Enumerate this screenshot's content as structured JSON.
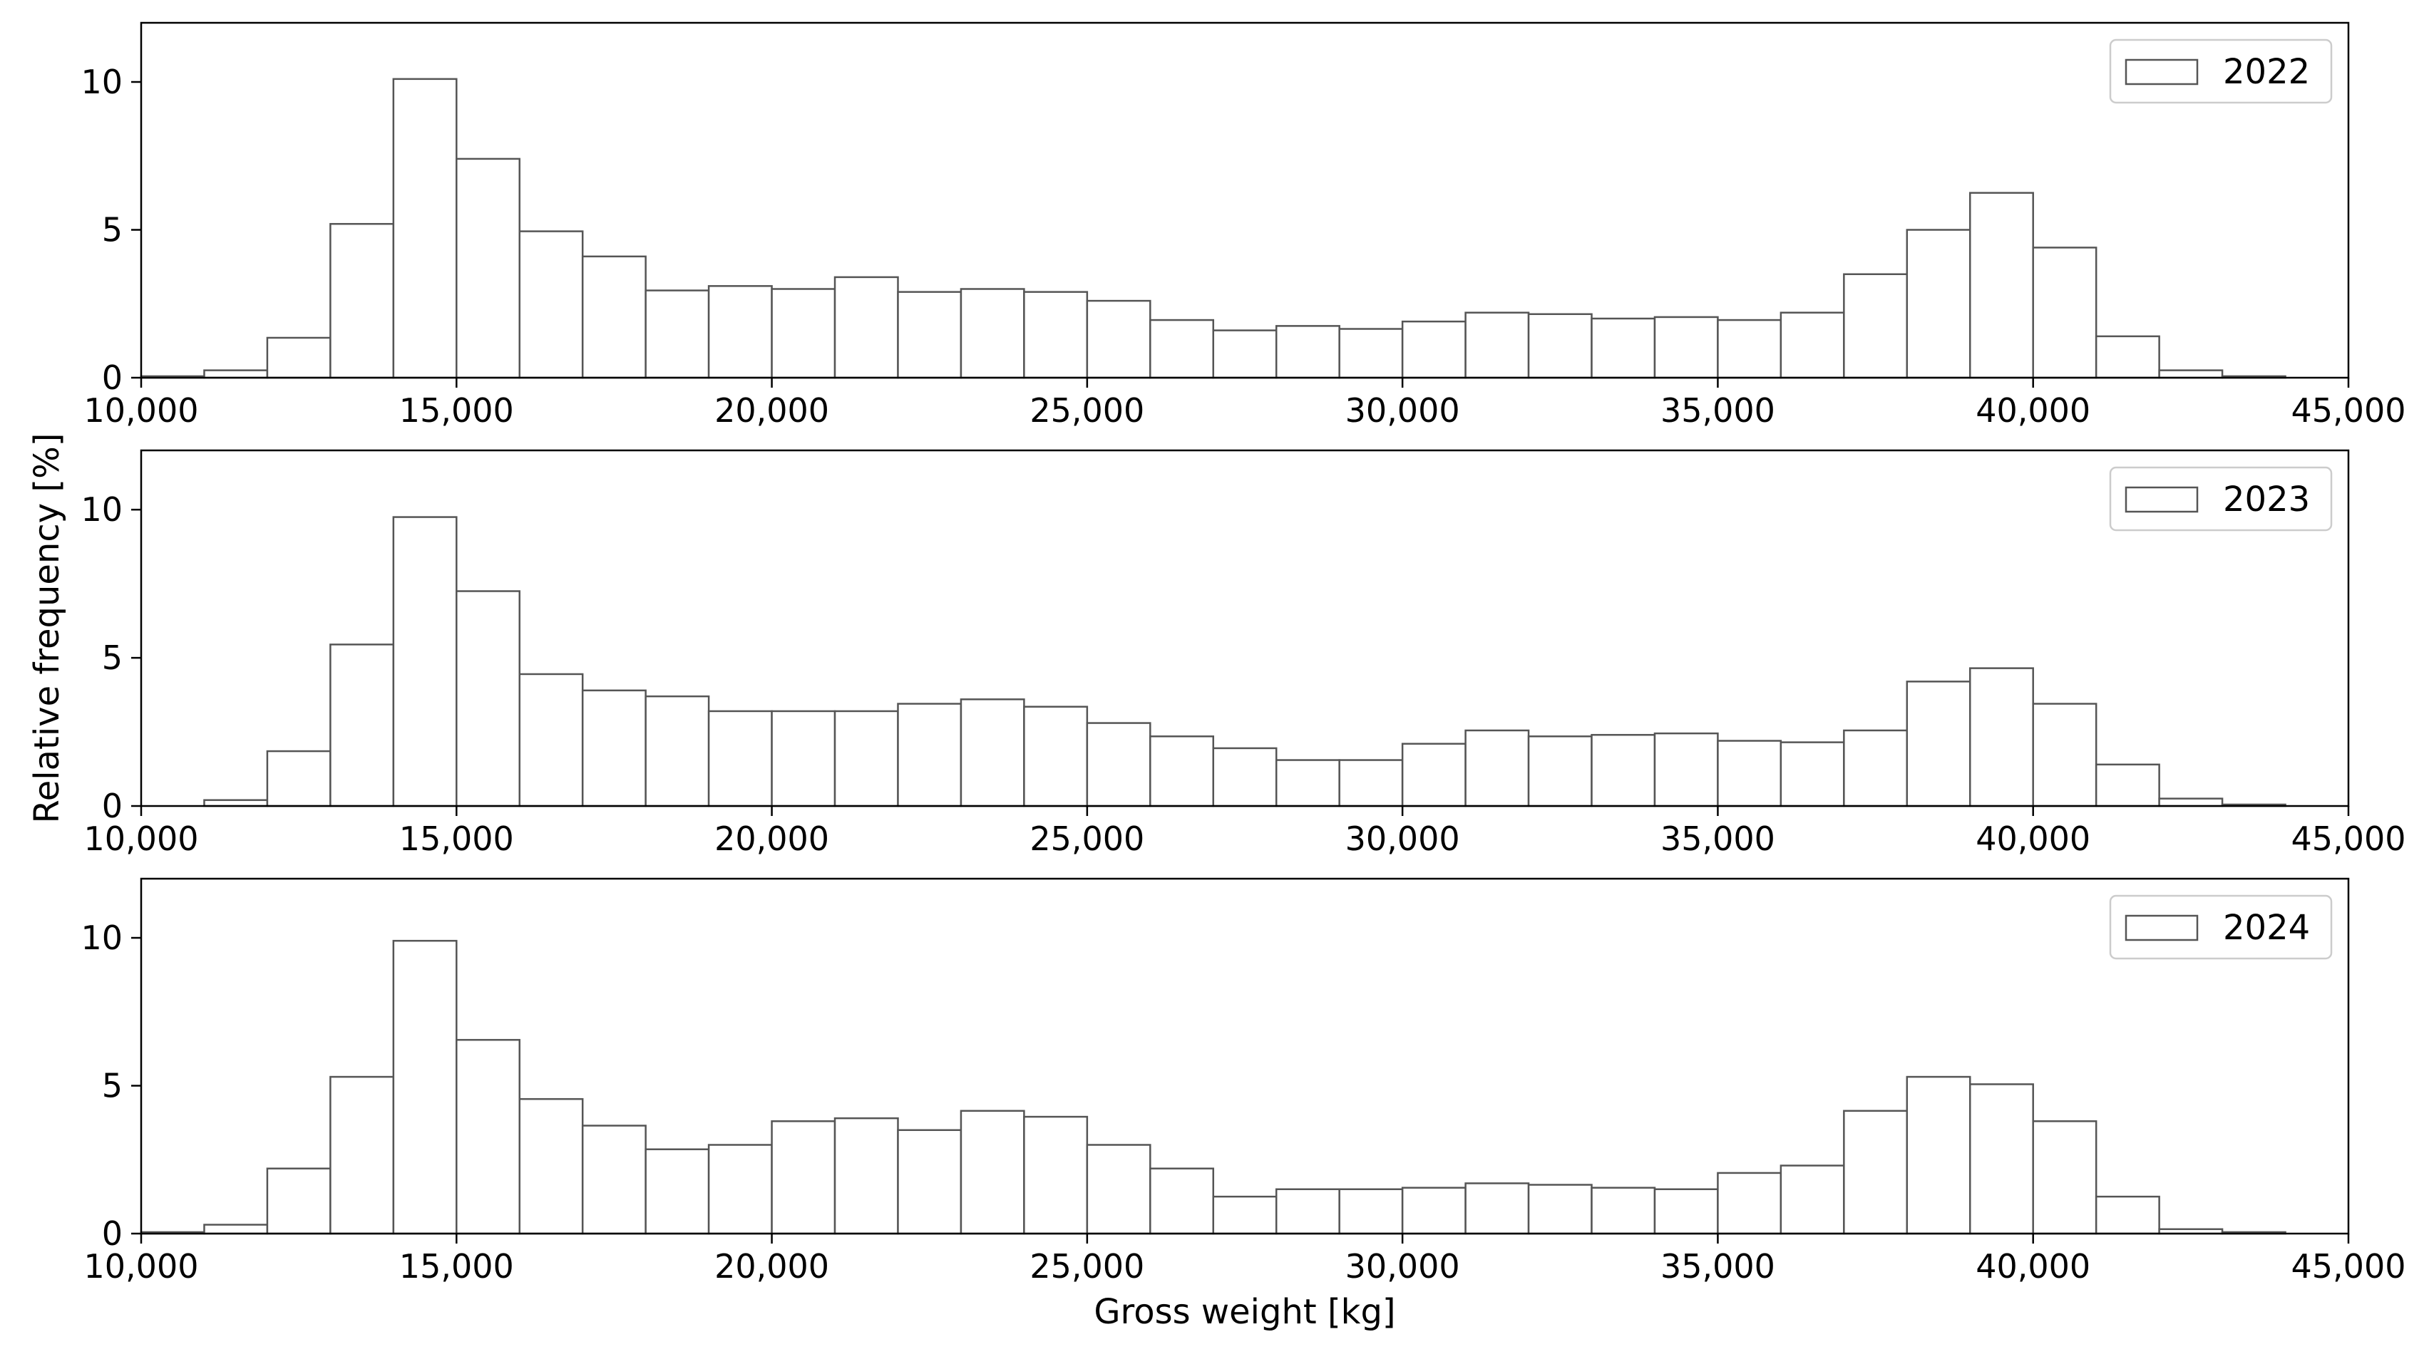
{
  "chart_data": {
    "type": "bar",
    "title": "",
    "xlabel": "Gross weight [kg]",
    "ylabel": "Relative frequency [%]",
    "xlim": [
      10000,
      45000
    ],
    "ylim": [
      0,
      12
    ],
    "bin_width": 1000,
    "bin_edges_start": [
      10000,
      11000,
      12000,
      13000,
      14000,
      15000,
      16000,
      17000,
      18000,
      19000,
      20000,
      21000,
      22000,
      23000,
      24000,
      25000,
      26000,
      27000,
      28000,
      29000,
      30000,
      31000,
      32000,
      33000,
      34000,
      35000,
      36000,
      37000,
      38000,
      39000,
      40000,
      41000,
      42000,
      43000
    ],
    "x_ticks": [
      10000,
      15000,
      20000,
      25000,
      30000,
      35000,
      40000,
      45000
    ],
    "x_tick_labels": [
      "10,000",
      "15,000",
      "20,000",
      "25,000",
      "30,000",
      "35,000",
      "40,000",
      "45,000"
    ],
    "y_ticks": [
      0,
      5,
      10
    ],
    "y_tick_labels": [
      "0",
      "5",
      "10"
    ],
    "legend_position": "top-right",
    "edge_color": "#555555",
    "fill_color": "#ffffff",
    "grid": false,
    "series": [
      {
        "name": "2022",
        "values": [
          0.05,
          0.25,
          1.35,
          5.2,
          10.1,
          7.4,
          4.95,
          4.1,
          2.95,
          3.1,
          3.0,
          3.4,
          2.9,
          3.0,
          2.9,
          2.6,
          1.95,
          1.6,
          1.75,
          1.65,
          1.9,
          2.2,
          2.15,
          2.0,
          2.05,
          1.95,
          2.2,
          3.5,
          5.0,
          6.25,
          4.4,
          1.4,
          0.25,
          0.05
        ]
      },
      {
        "name": "2023",
        "values": [
          0.0,
          0.2,
          1.85,
          5.45,
          9.75,
          7.25,
          4.45,
          3.9,
          3.7,
          3.2,
          3.2,
          3.2,
          3.45,
          3.6,
          3.35,
          2.8,
          2.35,
          1.95,
          1.55,
          1.55,
          2.1,
          2.55,
          2.35,
          2.4,
          2.45,
          2.2,
          2.15,
          2.55,
          4.2,
          4.65,
          3.45,
          1.4,
          0.25,
          0.05
        ]
      },
      {
        "name": "2024",
        "values": [
          0.05,
          0.3,
          2.2,
          5.3,
          9.9,
          6.55,
          4.55,
          3.65,
          2.85,
          3.0,
          3.8,
          3.9,
          3.5,
          4.15,
          3.95,
          3.0,
          2.2,
          1.25,
          1.5,
          1.5,
          1.55,
          1.7,
          1.65,
          1.55,
          1.5,
          2.05,
          2.3,
          4.15,
          5.3,
          5.05,
          3.8,
          1.25,
          0.15,
          0.05
        ]
      }
    ]
  }
}
